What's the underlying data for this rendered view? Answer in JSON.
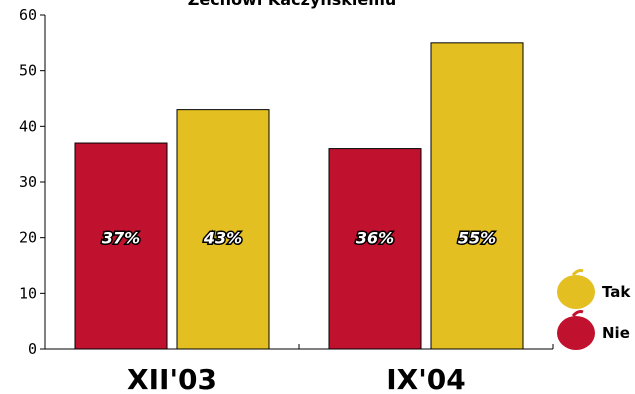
{
  "chart_data": {
    "type": "bar",
    "title": "Zechowi Kaczyńskiemu",
    "categories": [
      "XII'03",
      "IX'04"
    ],
    "series": [
      {
        "name": "Nie",
        "values": [
          37,
          36
        ],
        "labels": [
          "37%",
          "36%"
        ],
        "color": "#c0112e"
      },
      {
        "name": "Tak",
        "values": [
          43,
          55
        ],
        "labels": [
          "43%",
          "55%"
        ],
        "color": "#e3bf22"
      }
    ],
    "yticks": [
      "0",
      "10",
      "20",
      "30",
      "40",
      "50",
      "60"
    ],
    "ylim": [
      0,
      60
    ],
    "grid": false,
    "legend": "right",
    "legend_order": [
      "Tak",
      "Nie"
    ]
  }
}
